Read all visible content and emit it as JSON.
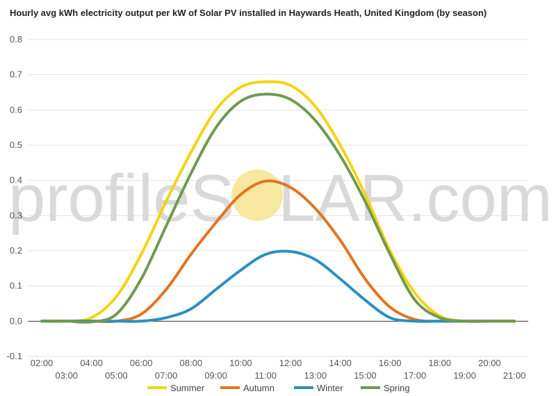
{
  "chart_data": {
    "type": "line",
    "title": "Hourly avg kWh electricity output per kW of Solar PV installed in Haywards Heath, United Kingdom (by season)",
    "xlabel": "",
    "ylabel": "",
    "x": [
      "02:00",
      "03:00",
      "04:00",
      "05:00",
      "06:00",
      "07:00",
      "08:00",
      "09:00",
      "10:00",
      "11:00",
      "12:00",
      "13:00",
      "14:00",
      "15:00",
      "16:00",
      "17:00",
      "18:00",
      "19:00",
      "20:00",
      "21:00"
    ],
    "x_ticks_upper": [
      "02:00",
      "04:00",
      "06:00",
      "08:00",
      "10:00",
      "12:00",
      "14:00",
      "16:00",
      "18:00",
      "20:00"
    ],
    "x_ticks_lower": [
      "03:00",
      "05:00",
      "07:00",
      "09:00",
      "11:00",
      "13:00",
      "15:00",
      "17:00",
      "19:00",
      "21:00"
    ],
    "ylim": [
      -0.1,
      0.8
    ],
    "y_ticks": [
      "-0.1",
      "0.0",
      "0.1",
      "0.2",
      "0.3",
      "0.4",
      "0.5",
      "0.6",
      "0.7",
      "0.8"
    ],
    "grid": true,
    "legend_position": "bottom",
    "series": [
      {
        "name": "Summer",
        "color": "#f5d311",
        "values": [
          0,
          0,
          0.01,
          0.07,
          0.19,
          0.34,
          0.48,
          0.6,
          0.665,
          0.68,
          0.67,
          0.61,
          0.5,
          0.36,
          0.2,
          0.08,
          0.015,
          0,
          0,
          0
        ]
      },
      {
        "name": "Autumn",
        "color": "#e3741e",
        "values": [
          0,
          0,
          0,
          0,
          0.02,
          0.09,
          0.19,
          0.28,
          0.36,
          0.398,
          0.38,
          0.32,
          0.23,
          0.12,
          0.04,
          0.005,
          0,
          0,
          0,
          0
        ]
      },
      {
        "name": "Winter",
        "color": "#2b8fc0",
        "values": [
          0,
          0,
          0,
          0,
          0,
          0.01,
          0.035,
          0.09,
          0.145,
          0.19,
          0.198,
          0.175,
          0.12,
          0.06,
          0.01,
          0,
          0,
          0,
          0,
          0
        ]
      },
      {
        "name": "Spring",
        "color": "#6e9a51",
        "values": [
          0,
          0,
          -0.002,
          0.02,
          0.12,
          0.27,
          0.42,
          0.55,
          0.625,
          0.645,
          0.63,
          0.57,
          0.47,
          0.34,
          0.19,
          0.06,
          0.01,
          0,
          0,
          0
        ]
      }
    ]
  },
  "watermark": {
    "left": "profileS",
    "right": "LAR.com",
    "sun_color": "#f7e7a0"
  }
}
